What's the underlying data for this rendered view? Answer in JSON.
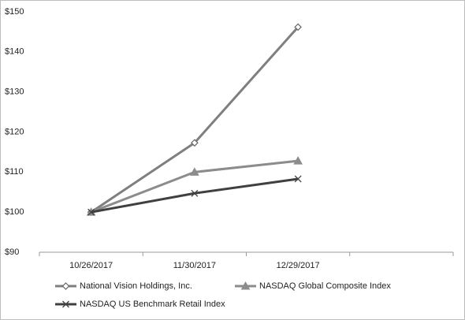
{
  "chart_data": {
    "type": "line",
    "categories": [
      "10/26/2017",
      "11/30/2017",
      "12/29/2017",
      null
    ],
    "series": [
      {
        "name": "National Vision Holdings, Inc.",
        "color": "#7f7f7f",
        "marker": "diamond",
        "values": [
          100,
          117.3,
          146.2,
          null
        ]
      },
      {
        "name": "NASDAQ Global Composite Index",
        "color": "#8c8c8c",
        "marker": "triangle",
        "values": [
          100,
          110,
          112.8,
          null
        ]
      },
      {
        "name": "NASDAQ US Benchmark Retail Index",
        "color": "#404040",
        "marker": "x",
        "values": [
          100,
          104.7,
          108.3,
          null
        ]
      }
    ],
    "ylim": [
      90,
      150
    ],
    "yticks": [
      {
        "value": 90,
        "label": "$90"
      },
      {
        "value": 100,
        "label": "$100"
      },
      {
        "value": 110,
        "label": "$110"
      },
      {
        "value": 120,
        "label": "$120"
      },
      {
        "value": 130,
        "label": "$130"
      },
      {
        "value": 140,
        "label": "$140"
      },
      {
        "value": 150,
        "label": "$150"
      }
    ],
    "grid": false,
    "legend": "bottom"
  }
}
